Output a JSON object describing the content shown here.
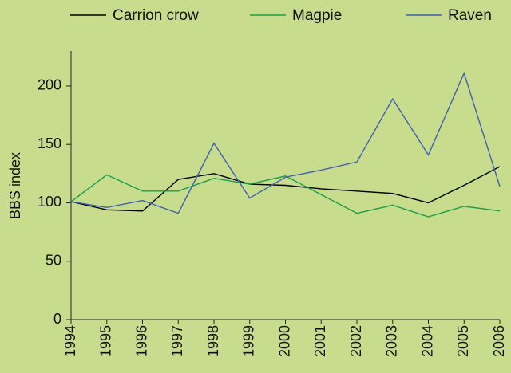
{
  "chart_data": {
    "type": "line",
    "y_label": "BBS index",
    "categories": [
      "1994",
      "1995",
      "1996",
      "1997",
      "1998",
      "1999",
      "2000",
      "2001",
      "2002",
      "2003",
      "2004",
      "2005",
      "2006"
    ],
    "series": [
      {
        "name": "Carrion crow",
        "color": "#000000",
        "values": [
          101,
          94,
          93,
          120,
          125,
          116,
          115,
          112,
          110,
          108,
          100,
          115,
          131
        ]
      },
      {
        "name": "Magpie",
        "color": "#1a9e4a",
        "values": [
          101,
          124,
          110,
          110,
          121,
          116,
          123,
          107,
          91,
          98,
          88,
          97,
          93
        ]
      },
      {
        "name": "Raven",
        "color": "#4060b0",
        "values": [
          101,
          96,
          102,
          91,
          151,
          104,
          122,
          128,
          135,
          189,
          141,
          211,
          114
        ]
      }
    ],
    "ylim": [
      0,
      230
    ],
    "yticks": [
      0,
      50,
      100,
      150,
      200
    ],
    "legend": "top"
  }
}
